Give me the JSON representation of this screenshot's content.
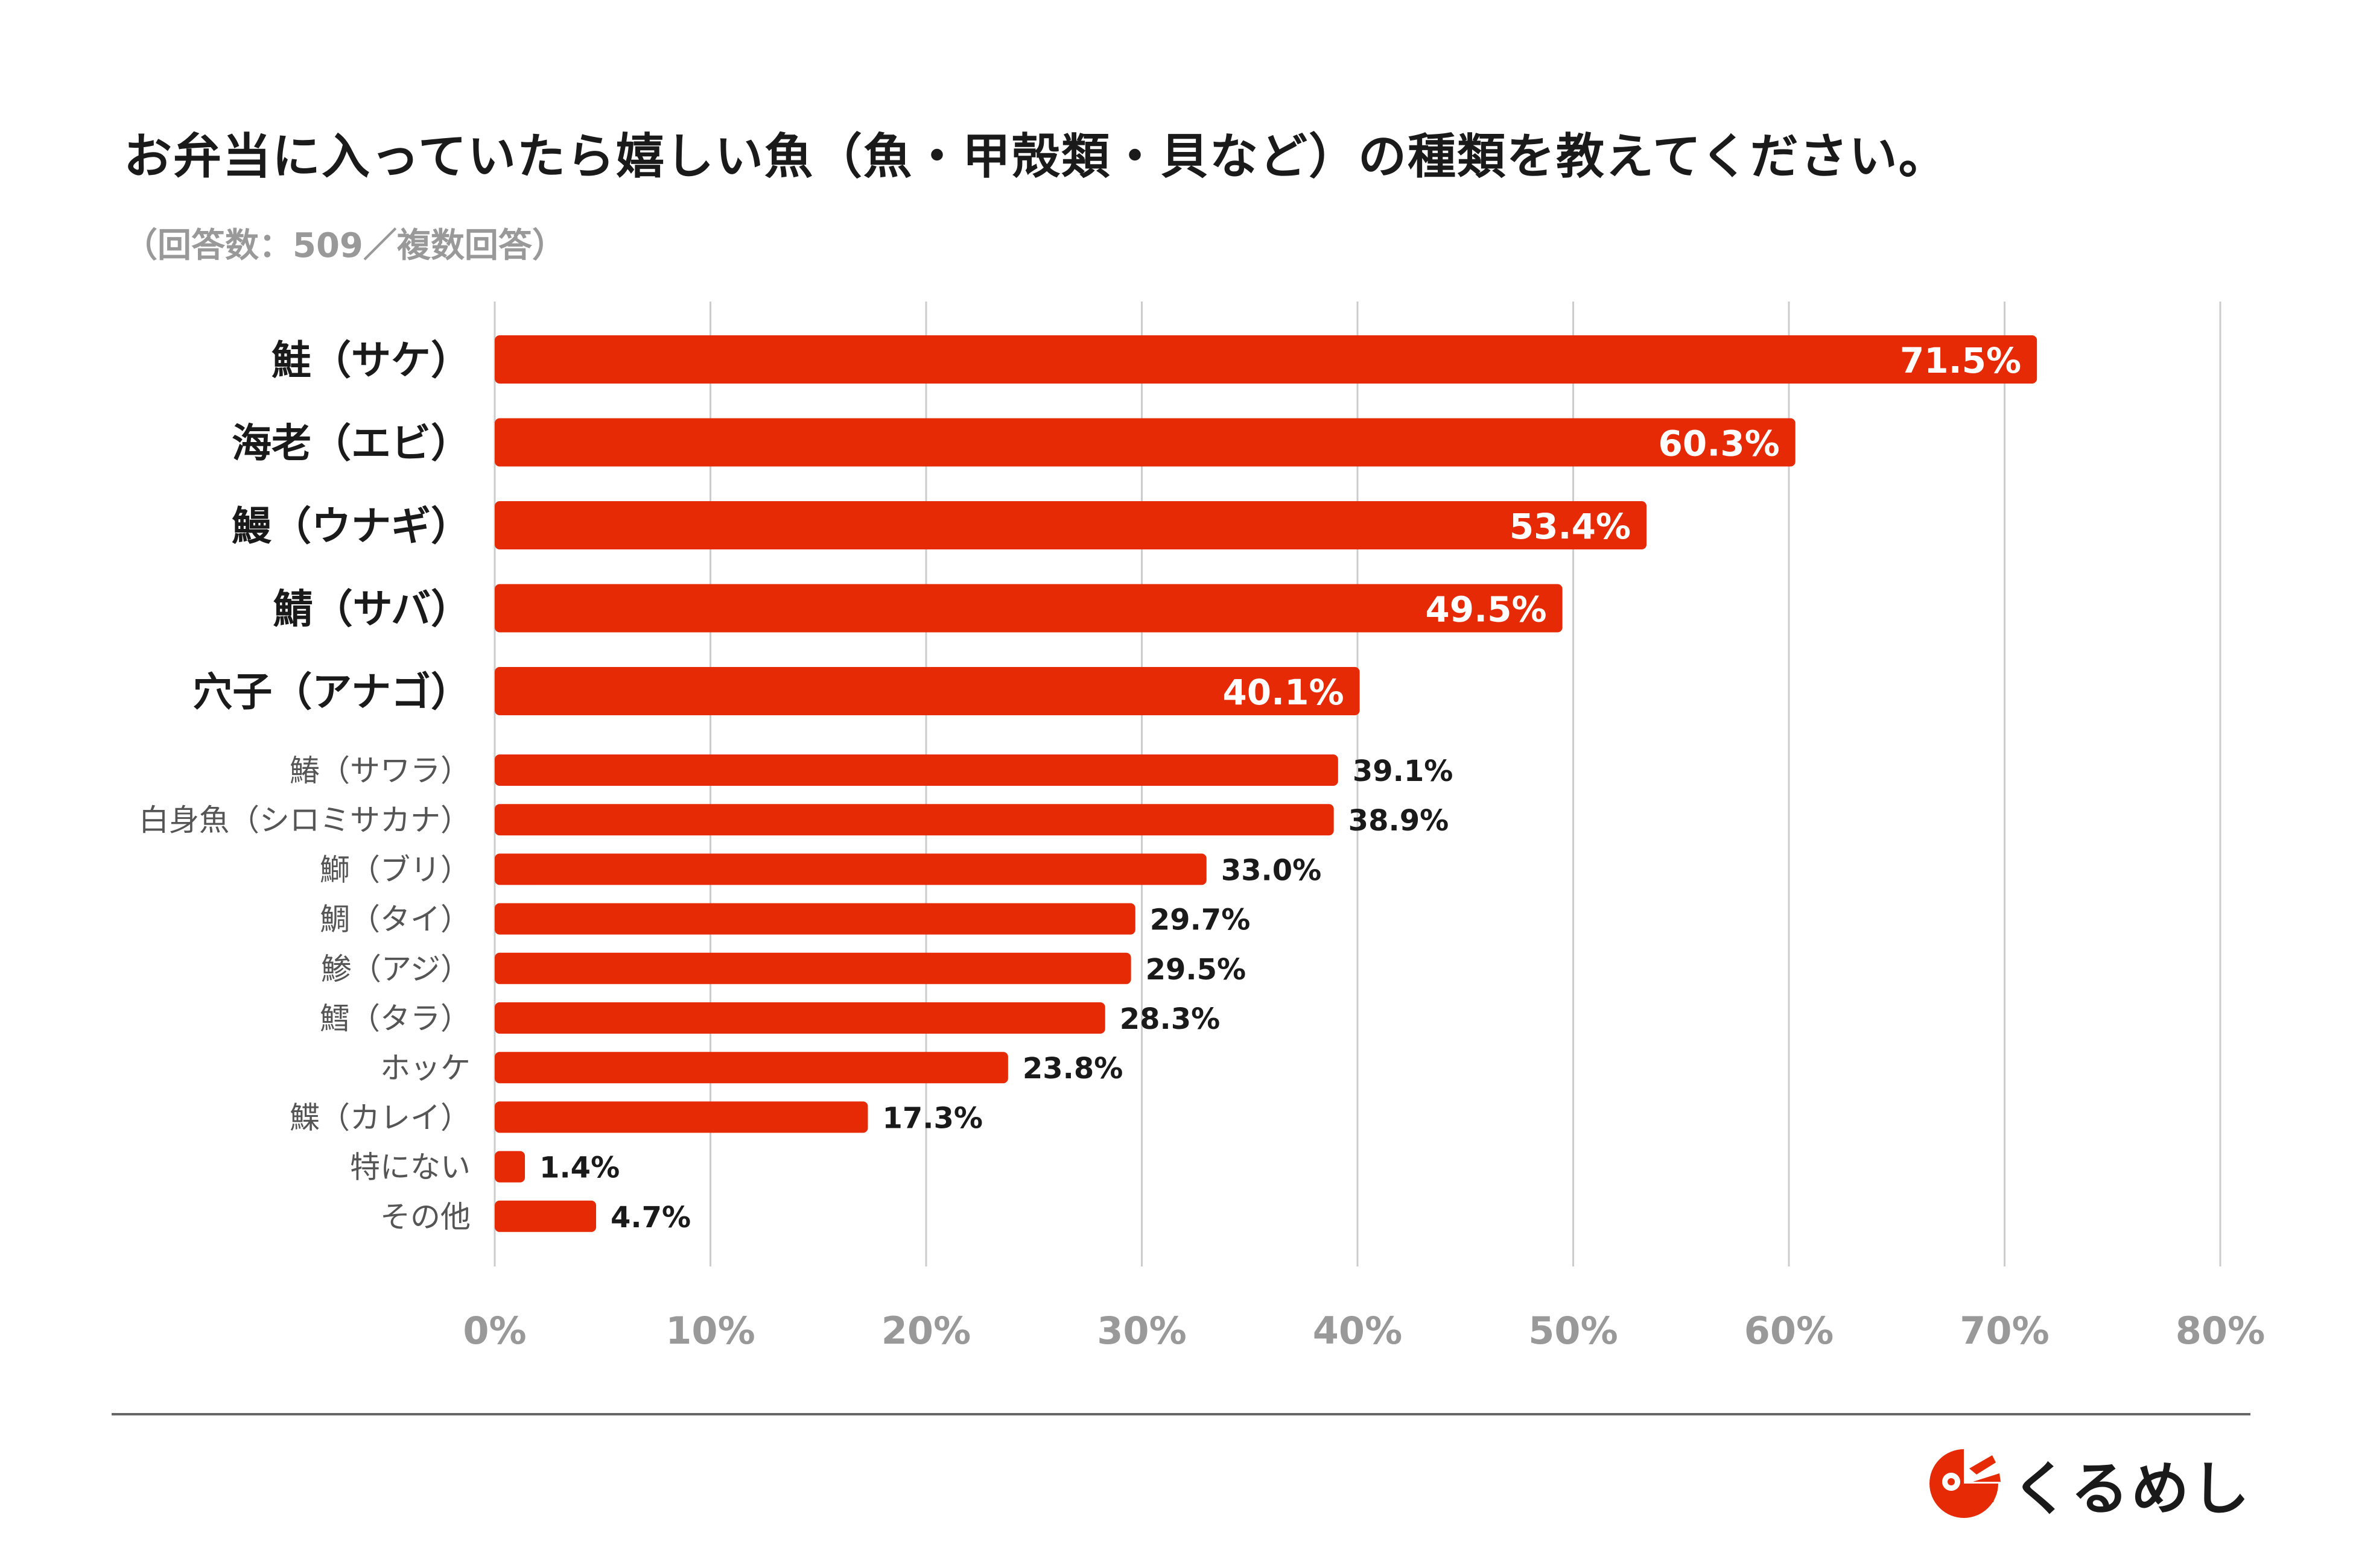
{
  "title": "お弁当に入っていたら嬉しい魚（魚・甲殻類・貝など）の種類を教えてください。",
  "subtitle": "（回答数：509／複数回答）",
  "brand": {
    "name": "くるめし",
    "logo_icon": "kurumeshi-logo-icon"
  },
  "colors": {
    "bar": "#E62A05",
    "grid": "#cccccc",
    "axis_tick_text": "#999999",
    "label_text": "#1a1a1a",
    "minor_label_text": "#555555"
  },
  "chart_data": {
    "type": "bar",
    "orientation": "horizontal",
    "categories": [
      "鮭（サケ）",
      "海老（エビ）",
      "鰻（ウナギ）",
      "鯖（サバ）",
      "穴子（アナゴ）",
      "鰆（サワラ）",
      "白身魚（シロミサカナ）",
      "鰤（ブリ）",
      "鯛（タイ）",
      "鯵（アジ）",
      "鱈（タラ）",
      "ホッケ",
      "鰈（カレイ）",
      "特にない",
      "その他"
    ],
    "values": [
      71.5,
      60.3,
      53.4,
      49.5,
      40.1,
      39.1,
      38.9,
      33.0,
      29.7,
      29.5,
      28.3,
      23.8,
      17.3,
      1.4,
      4.7
    ],
    "value_labels": [
      "71.5%",
      "60.3%",
      "53.4%",
      "49.5%",
      "40.1%",
      "39.1%",
      "38.9%",
      "33.0%",
      "29.7%",
      "29.5%",
      "28.3%",
      "23.8%",
      "17.3%",
      "1.4%",
      "4.7%"
    ],
    "highlight_top": 5,
    "xlim": [
      0,
      80
    ],
    "x_ticks": [
      0,
      10,
      20,
      30,
      40,
      50,
      60,
      70,
      80
    ],
    "x_tick_labels": [
      "0%",
      "10%",
      "20%",
      "30%",
      "40%",
      "50%",
      "60%",
      "70%",
      "80%"
    ],
    "grid": true
  }
}
